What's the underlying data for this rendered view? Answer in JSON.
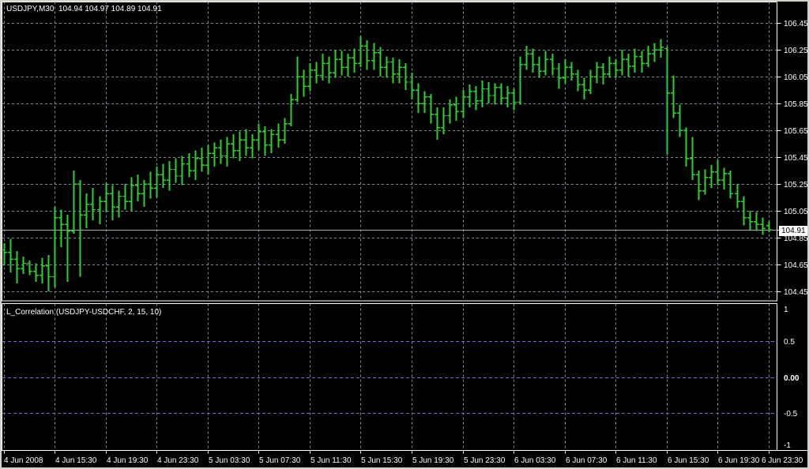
{
  "window": {
    "title": "USDJPY,M30  104.94 104.97 104.89 104.91"
  },
  "main_chart": {
    "title": "USDJPY,M30  104.94 104.97 104.89 104.91",
    "symbol": "USDJPY",
    "timeframe": "M30",
    "ohlc": {
      "open": "104.94",
      "high": "104.97",
      "low": "104.89",
      "close": "104.91"
    },
    "price_axis_labels": [
      "106.45",
      "106.25",
      "106.05",
      "105.85",
      "105.65",
      "105.45",
      "105.25",
      "105.05",
      "104.85",
      "104.65",
      "104.45"
    ],
    "current_price": "104.91"
  },
  "indicator_pane": {
    "label": "L_Correlation (USDJPY-USDCHF, 2, 15, 10)",
    "axis_labels": [
      "1",
      "0.5",
      "0.00",
      "-0.5",
      "-1"
    ],
    "current_value": "0.00"
  },
  "time_axis_labels": [
    "4 Jun 2008",
    "4 Jun 15:30",
    "4 Jun 19:30",
    "4 Jun 23:30",
    "5 Jun 03:30",
    "5 Jun 07:30",
    "5 Jun 11:30",
    "5 Jun 15:30",
    "5 Jun 19:30",
    "5 Jun 23:30",
    "6 Jun 03:30",
    "6 Jun 07:30",
    "6 Jun 11:30",
    "6 Jun 15:30",
    "6 Jun 19:30",
    "6 Jun 23:30"
  ],
  "colors": {
    "background": "#000000",
    "frame": "#d4d0c8",
    "pane_border": "#ffffff",
    "bar_green": "#2ed12e",
    "grid": "#7d8a9b",
    "level_purple": "#8a63d2",
    "bid_line": "#a9a9a9",
    "axis_text": "#ffffff",
    "price_tag_bg": "#ffffff",
    "price_tag_text": "#000000"
  },
  "chart_data": [
    {
      "type": "ohlc-bar",
      "title": "USDJPY,M30",
      "symbol": "USDJPY",
      "timeframe": "M30",
      "x_labels": [
        "4 Jun 2008",
        "4 Jun 15:30",
        "4 Jun 19:30",
        "4 Jun 23:30",
        "5 Jun 03:30",
        "5 Jun 07:30",
        "5 Jun 11:30",
        "5 Jun 15:30",
        "5 Jun 19:30",
        "5 Jun 23:30",
        "6 Jun 03:30",
        "6 Jun 07:30",
        "6 Jun 11:30",
        "6 Jun 15:30",
        "6 Jun 19:30",
        "6 Jun 23:30"
      ],
      "bars_per_label": 8,
      "y_ticks": [
        106.45,
        106.25,
        106.05,
        105.85,
        105.65,
        105.45,
        105.25,
        105.05,
        104.85,
        104.65,
        104.45
      ],
      "ylim": [
        104.35,
        106.6
      ],
      "grid": true,
      "current_price": 104.91,
      "last_bar_ohlc": [
        104.94,
        104.97,
        104.89,
        104.91
      ],
      "bars": [
        [
          104.76,
          104.81,
          104.64,
          104.74
        ],
        [
          104.74,
          104.84,
          104.59,
          104.69
        ],
        [
          104.69,
          104.75,
          104.51,
          104.62
        ],
        [
          104.62,
          104.71,
          104.58,
          104.66
        ],
        [
          104.66,
          104.68,
          104.57,
          104.6
        ],
        [
          104.6,
          104.66,
          104.52,
          104.57
        ],
        [
          104.57,
          104.7,
          104.51,
          104.64
        ],
        [
          104.64,
          104.72,
          104.45,
          104.56
        ],
        [
          104.56,
          105.08,
          104.48,
          105.0
        ],
        [
          105.0,
          105.06,
          104.78,
          104.95
        ],
        [
          104.95,
          105.02,
          104.52,
          104.9
        ],
        [
          104.9,
          105.35,
          104.88,
          105.25
        ],
        [
          105.25,
          105.28,
          104.56,
          105.02
        ],
        [
          105.02,
          105.18,
          104.92,
          105.1
        ],
        [
          105.1,
          105.22,
          104.98,
          105.06
        ],
        [
          105.06,
          105.16,
          104.95,
          105.12
        ],
        [
          105.12,
          105.26,
          105.04,
          105.18
        ],
        [
          105.18,
          105.24,
          104.98,
          105.08
        ],
        [
          105.08,
          105.2,
          105.0,
          105.16
        ],
        [
          105.16,
          105.25,
          105.06,
          105.12
        ],
        [
          105.12,
          105.3,
          105.05,
          105.24
        ],
        [
          105.24,
          105.32,
          105.12,
          105.18
        ],
        [
          105.18,
          105.28,
          105.08,
          105.25
        ],
        [
          105.25,
          105.34,
          105.14,
          105.22
        ],
        [
          105.22,
          105.38,
          105.15,
          105.32
        ],
        [
          105.32,
          105.4,
          105.22,
          105.28
        ],
        [
          105.28,
          105.42,
          105.2,
          105.36
        ],
        [
          105.36,
          105.44,
          105.26,
          105.31
        ],
        [
          105.31,
          105.46,
          105.24,
          105.4
        ],
        [
          105.4,
          105.48,
          105.3,
          105.35
        ],
        [
          105.35,
          105.5,
          105.28,
          105.44
        ],
        [
          105.44,
          105.52,
          105.34,
          105.39
        ],
        [
          105.39,
          105.54,
          105.32,
          105.48
        ],
        [
          105.48,
          105.56,
          105.38,
          105.52
        ],
        [
          105.52,
          105.58,
          105.4,
          105.46
        ],
        [
          105.46,
          105.6,
          105.38,
          105.55
        ],
        [
          105.55,
          105.62,
          105.44,
          105.5
        ],
        [
          105.5,
          105.64,
          105.42,
          105.58
        ],
        [
          105.58,
          105.66,
          105.46,
          105.52
        ],
        [
          105.52,
          105.62,
          105.44,
          105.58
        ],
        [
          105.58,
          105.7,
          105.5,
          105.64
        ],
        [
          105.64,
          105.68,
          105.46,
          105.54
        ],
        [
          105.54,
          105.66,
          105.48,
          105.62
        ],
        [
          105.62,
          105.7,
          105.52,
          105.58
        ],
        [
          105.58,
          105.74,
          105.55,
          105.7
        ],
        [
          105.7,
          105.92,
          105.68,
          105.88
        ],
        [
          105.88,
          106.2,
          105.86,
          106.05
        ],
        [
          106.05,
          106.1,
          105.9,
          105.98
        ],
        [
          105.98,
          106.15,
          105.94,
          106.1
        ],
        [
          106.1,
          106.16,
          106.0,
          106.06
        ],
        [
          106.06,
          106.22,
          106.02,
          106.15
        ],
        [
          106.15,
          106.2,
          106.0,
          106.08
        ],
        [
          106.08,
          106.25,
          106.04,
          106.18
        ],
        [
          106.18,
          106.24,
          106.06,
          106.12
        ],
        [
          106.12,
          106.22,
          106.05,
          106.19
        ],
        [
          106.19,
          106.26,
          106.08,
          106.15
        ],
        [
          106.15,
          106.35,
          106.12,
          106.28
        ],
        [
          106.28,
          106.32,
          106.1,
          106.17
        ],
        [
          106.17,
          106.3,
          106.1,
          106.23
        ],
        [
          106.23,
          106.27,
          106.05,
          106.12
        ],
        [
          106.12,
          106.2,
          106.04,
          106.16
        ],
        [
          106.16,
          106.19,
          106.0,
          106.07
        ],
        [
          106.07,
          106.18,
          106.0,
          106.12
        ],
        [
          106.12,
          106.15,
          105.95,
          106.01
        ],
        [
          106.01,
          106.08,
          105.88,
          105.95
        ],
        [
          105.95,
          106.0,
          105.78,
          105.85
        ],
        [
          105.85,
          105.94,
          105.78,
          105.9
        ],
        [
          105.9,
          105.92,
          105.7,
          105.77
        ],
        [
          105.77,
          105.82,
          105.58,
          105.67
        ],
        [
          105.67,
          105.82,
          105.62,
          105.76
        ],
        [
          105.76,
          105.88,
          105.7,
          105.84
        ],
        [
          105.84,
          105.9,
          105.72,
          105.79
        ],
        [
          105.79,
          105.95,
          105.74,
          105.9
        ],
        [
          105.9,
          105.99,
          105.82,
          105.94
        ],
        [
          105.94,
          105.98,
          105.8,
          105.87
        ],
        [
          105.87,
          106.02,
          105.82,
          105.96
        ],
        [
          105.96,
          106.01,
          105.85,
          105.91
        ],
        [
          105.91,
          106.0,
          105.84,
          105.97
        ],
        [
          105.97,
          106.0,
          105.84,
          105.89
        ],
        [
          105.89,
          105.98,
          105.82,
          105.93
        ],
        [
          105.93,
          105.96,
          105.8,
          105.86
        ],
        [
          105.86,
          106.2,
          105.84,
          106.14
        ],
        [
          106.14,
          106.28,
          106.1,
          106.22
        ],
        [
          106.22,
          106.26,
          106.08,
          106.14
        ],
        [
          106.14,
          106.2,
          106.04,
          106.09
        ],
        [
          106.09,
          106.24,
          106.06,
          106.18
        ],
        [
          106.18,
          106.22,
          106.06,
          106.11
        ],
        [
          106.11,
          106.15,
          105.96,
          106.04
        ],
        [
          106.04,
          106.18,
          106.0,
          106.12
        ],
        [
          106.12,
          106.16,
          106.02,
          106.07
        ],
        [
          106.07,
          106.1,
          105.94,
          105.99
        ],
        [
          105.99,
          106.04,
          105.88,
          105.95
        ],
        [
          105.95,
          106.1,
          105.92,
          106.05
        ],
        [
          106.05,
          106.16,
          106.0,
          106.12
        ],
        [
          106.12,
          106.15,
          105.99,
          106.07
        ],
        [
          106.07,
          106.2,
          106.04,
          106.15
        ],
        [
          106.15,
          106.18,
          106.04,
          106.1
        ],
        [
          106.1,
          106.25,
          106.06,
          106.18
        ],
        [
          106.18,
          106.22,
          106.05,
          106.13
        ],
        [
          106.13,
          106.26,
          106.08,
          106.2
        ],
        [
          106.2,
          106.24,
          106.08,
          106.15
        ],
        [
          106.15,
          106.28,
          106.12,
          106.22
        ],
        [
          106.22,
          106.3,
          106.16,
          106.25
        ],
        [
          106.25,
          106.33,
          106.19,
          106.27
        ],
        [
          106.26,
          106.27,
          105.47,
          105.93
        ],
        [
          105.93,
          106.06,
          105.74,
          105.78
        ],
        [
          105.78,
          105.84,
          105.6,
          105.65
        ],
        [
          105.65,
          105.67,
          105.38,
          105.44
        ],
        [
          105.44,
          105.6,
          105.28,
          105.32
        ],
        [
          105.32,
          105.35,
          105.13,
          105.2
        ],
        [
          105.2,
          105.36,
          105.17,
          105.3
        ],
        [
          105.3,
          105.39,
          105.22,
          105.34
        ],
        [
          105.34,
          105.43,
          105.24,
          105.28
        ],
        [
          105.28,
          105.37,
          105.21,
          105.33
        ],
        [
          105.33,
          105.35,
          105.14,
          105.18
        ],
        [
          105.18,
          105.25,
          105.07,
          105.12
        ],
        [
          105.12,
          105.16,
          104.94,
          105.0
        ],
        [
          105.0,
          105.05,
          104.91,
          104.97
        ],
        [
          104.97,
          105.04,
          104.9,
          104.95
        ],
        [
          104.95,
          105.0,
          104.87,
          104.92
        ],
        [
          104.94,
          104.97,
          104.89,
          104.91
        ]
      ]
    },
    {
      "type": "line",
      "title": "L_Correlation (USDJPY-USDCHF, 2, 15, 10)",
      "pair": "USDJPY-USDCHF",
      "params": "2, 15, 10",
      "y_ticks": [
        1,
        0.5,
        0,
        -0.5,
        -1
      ],
      "levels": [
        0.5,
        0,
        -0.5
      ],
      "ylim": [
        -1,
        1
      ],
      "current_value": 0,
      "values": []
    }
  ]
}
